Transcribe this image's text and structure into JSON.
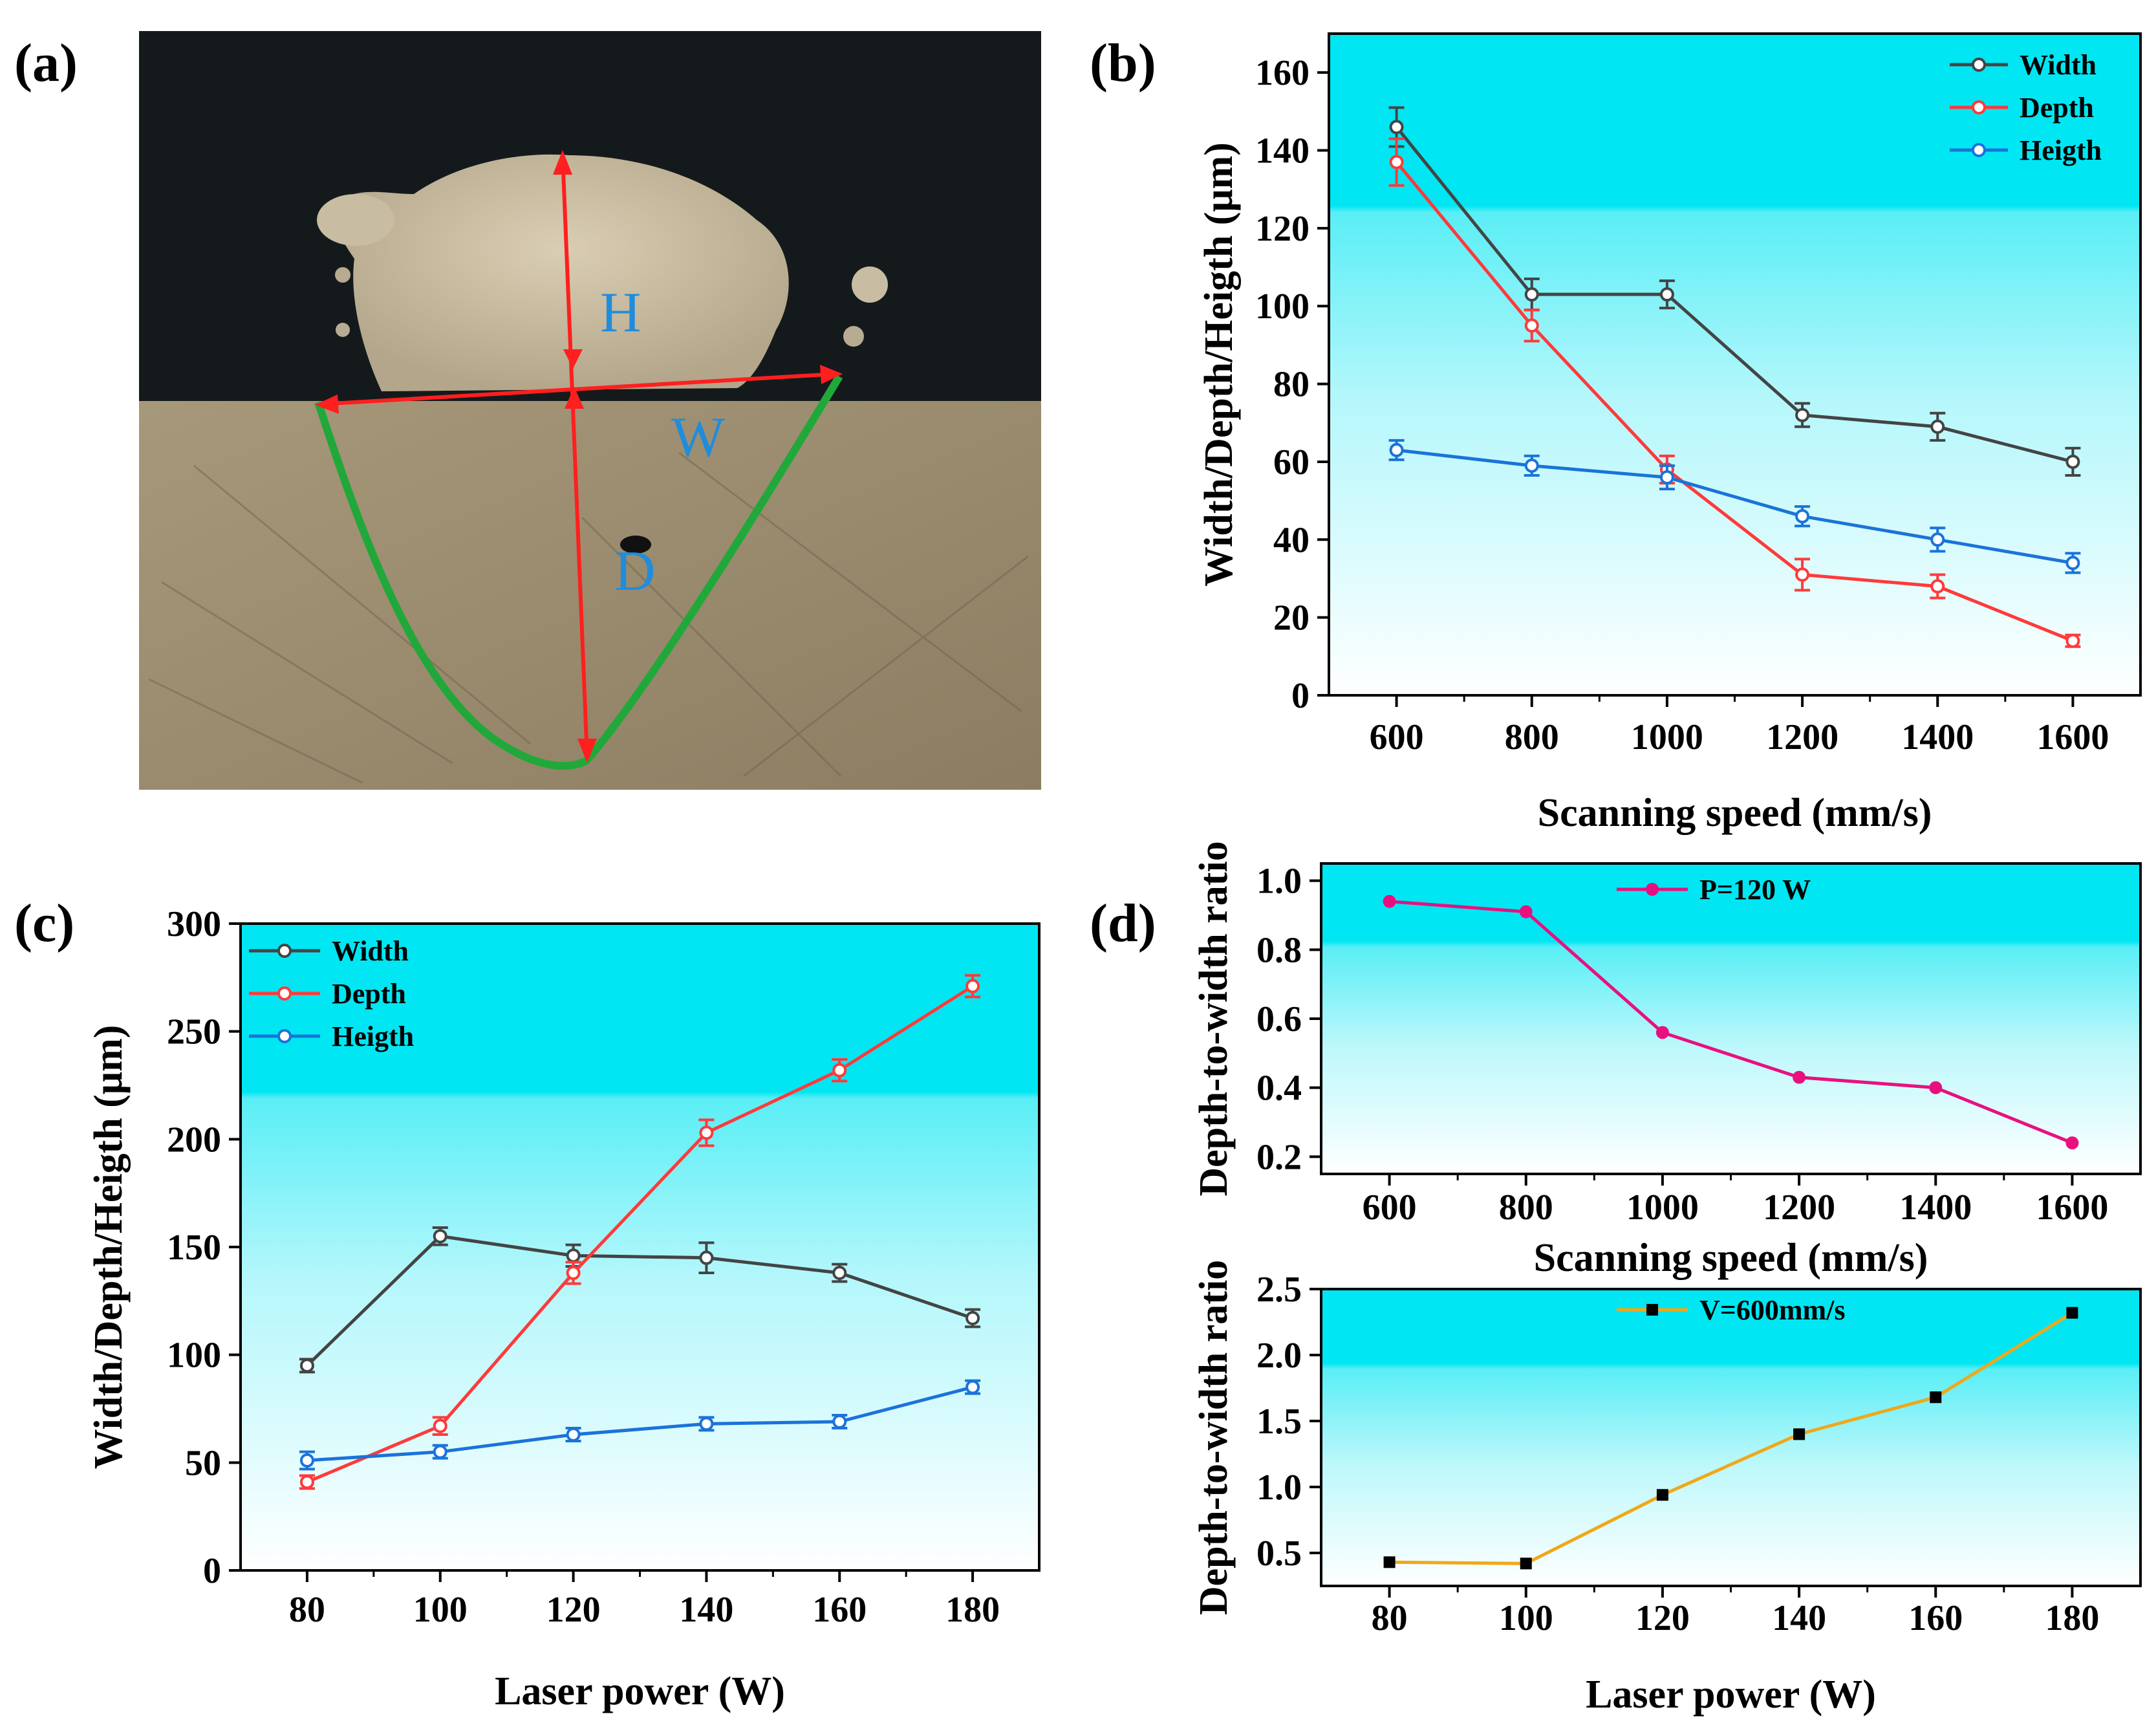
{
  "figure": {
    "panel_labels": [
      "(a)",
      "(b)",
      "(c)",
      "(d)"
    ],
    "micrograph": {
      "labels": {
        "H": "H",
        "W": "W",
        "D": "D"
      }
    }
  },
  "colors": {
    "width": "#444444",
    "depth": "#ff3a3a",
    "height": "#1a73d9",
    "ratio_speed": "#e8107f",
    "ratio_power": "#f0a818",
    "cyan": "#00e6f2"
  },
  "chart_data": [
    {
      "id": "b",
      "type": "line",
      "title": "",
      "xlabel": "Scanning speed (mm/s)",
      "ylabel": "Width/Depth/Heigth (μm)",
      "x": [
        600,
        800,
        1000,
        1200,
        1400,
        1600
      ],
      "xlim": [
        500,
        1700
      ],
      "ylim": [
        0,
        170
      ],
      "xticks": [
        "600",
        "800",
        "1000",
        "1200",
        "1400",
        "1600"
      ],
      "yticks": [
        "0",
        "20",
        "40",
        "60",
        "80",
        "100",
        "120",
        "140",
        "160"
      ],
      "legend_position": "top-right",
      "series": [
        {
          "name": "Width",
          "values": [
            146,
            103,
            103,
            72,
            69,
            60
          ],
          "errors": [
            5,
            4,
            3.5,
            3,
            3.5,
            3.5
          ]
        },
        {
          "name": "Depth",
          "values": [
            137,
            95,
            58,
            31,
            28,
            14
          ],
          "errors": [
            6,
            4,
            3.5,
            4,
            3,
            1.5
          ]
        },
        {
          "name": "Heigth",
          "values": [
            63,
            59,
            56,
            46,
            40,
            34
          ],
          "errors": [
            2.5,
            2.5,
            3,
            2.5,
            3,
            2.5
          ]
        }
      ]
    },
    {
      "id": "c",
      "type": "line",
      "title": "",
      "xlabel": "Laser power (W)",
      "ylabel": "Width/Depth/Heigth (μm)",
      "x": [
        80,
        100,
        120,
        140,
        160,
        180
      ],
      "xlim": [
        70,
        190
      ],
      "ylim": [
        0,
        300
      ],
      "xticks": [
        "80",
        "100",
        "120",
        "140",
        "160",
        "180"
      ],
      "yticks": [
        "0",
        "50",
        "100",
        "150",
        "200",
        "250",
        "300"
      ],
      "legend_position": "top-left",
      "series": [
        {
          "name": "Width",
          "values": [
            95,
            155,
            146,
            145,
            138,
            117
          ],
          "errors": [
            3,
            4,
            5,
            7,
            4,
            4
          ]
        },
        {
          "name": "Depth",
          "values": [
            41,
            67,
            138,
            203,
            232,
            271
          ],
          "errors": [
            3,
            4,
            5,
            6,
            5,
            5
          ]
        },
        {
          "name": "Heigth",
          "values": [
            51,
            55,
            63,
            68,
            69,
            85
          ],
          "errors": [
            4,
            3,
            3,
            3,
            3,
            3
          ]
        }
      ]
    },
    {
      "id": "d-top",
      "type": "line",
      "xlabel": "Scanning speed (mm/s)",
      "ylabel": "Depth-to-width ratio",
      "x": [
        600,
        800,
        1000,
        1200,
        1400,
        1600
      ],
      "xlim": [
        500,
        1700
      ],
      "ylim": [
        0.15,
        1.05
      ],
      "xticks": [
        "600",
        "800",
        "1000",
        "1200",
        "1400",
        "1600"
      ],
      "yticks": [
        "0.2",
        "0.4",
        "0.6",
        "0.8",
        "1.0"
      ],
      "legend_position": "top-center",
      "series": [
        {
          "name": "P=120 W",
          "values": [
            0.94,
            0.91,
            0.56,
            0.43,
            0.4,
            0.24
          ]
        }
      ]
    },
    {
      "id": "d-bottom",
      "type": "line",
      "xlabel": "Laser power (W)",
      "ylabel": "Depth-to-width ratio",
      "x": [
        80,
        100,
        120,
        140,
        160,
        180
      ],
      "xlim": [
        70,
        190
      ],
      "ylim": [
        0.25,
        2.5
      ],
      "xticks": [
        "80",
        "100",
        "120",
        "140",
        "160",
        "180"
      ],
      "yticks": [
        "0.5",
        "1.0",
        "1.5",
        "2.0",
        "2.5"
      ],
      "legend_position": "top-center",
      "series": [
        {
          "name": "V=600mm/s",
          "values": [
            0.43,
            0.42,
            0.94,
            1.4,
            1.68,
            2.32
          ]
        }
      ]
    }
  ]
}
